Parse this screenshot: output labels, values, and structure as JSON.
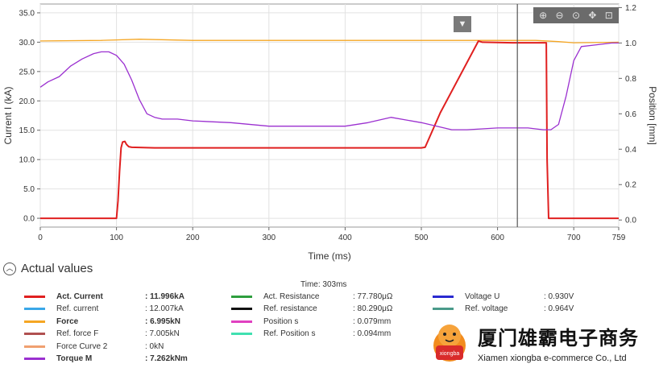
{
  "chart_data": {
    "type": "line",
    "xlabel": "Time (ms)",
    "ylabel_left": "Current I (kA)",
    "ylabel_right": "Position [mm]",
    "xlim": [
      0,
      759
    ],
    "ylim_left": [
      -1.5,
      36.5
    ],
    "ylim_right": [
      -0.04,
      1.22
    ],
    "x_ticks": [
      0,
      100,
      200,
      300,
      400,
      500,
      600,
      700,
      759
    ],
    "y_left_ticks": [
      "0.0",
      "5.0",
      "10.0",
      "15.0",
      "20.0",
      "25.0",
      "30.0",
      "35.0"
    ],
    "y_right_ticks": [
      "0.0",
      "0.2",
      "0.4",
      "0.6",
      "0.8",
      "1.0",
      "1.2"
    ],
    "cursor_x": 626,
    "grid": true,
    "series": [
      {
        "name": "Force",
        "axis": "left",
        "color": "#f5a623",
        "x": [
          0,
          80,
          130,
          200,
          400,
          600,
          650,
          680,
          700,
          759
        ],
        "y": [
          30.2,
          30.3,
          30.5,
          30.3,
          30.3,
          30.3,
          30.3,
          30.1,
          29.9,
          30.0
        ]
      },
      {
        "name": "Act. Current",
        "axis": "left",
        "color": "#e02020",
        "x": [
          0,
          100,
          102,
          104,
          106,
          108,
          111,
          113,
          116,
          120,
          150,
          300,
          500,
          505,
          525,
          575,
          580,
          620,
          664,
          665,
          667,
          680,
          759
        ],
        "y": [
          0,
          0,
          3,
          8,
          12,
          13,
          13.1,
          12.6,
          12.2,
          12.1,
          12.0,
          12.0,
          12.0,
          12.1,
          18,
          30.2,
          30.0,
          29.9,
          29.9,
          10,
          0,
          0,
          0
        ]
      },
      {
        "name": "Torque M",
        "axis": "right",
        "color": "#9b30d0",
        "x": [
          0,
          10,
          25,
          40,
          55,
          70,
          80,
          90,
          100,
          110,
          120,
          130,
          140,
          150,
          160,
          180,
          200,
          250,
          300,
          350,
          400,
          430,
          460,
          500,
          540,
          560,
          600,
          640,
          660,
          670,
          680,
          690,
          700,
          710,
          730,
          750,
          759
        ],
        "y": [
          0.75,
          0.78,
          0.81,
          0.87,
          0.91,
          0.94,
          0.95,
          0.95,
          0.93,
          0.88,
          0.79,
          0.68,
          0.6,
          0.58,
          0.57,
          0.57,
          0.56,
          0.55,
          0.53,
          0.53,
          0.53,
          0.55,
          0.58,
          0.55,
          0.51,
          0.51,
          0.52,
          0.52,
          0.51,
          0.51,
          0.54,
          0.7,
          0.9,
          0.98,
          0.99,
          1.0,
          1.0
        ]
      }
    ]
  },
  "section": {
    "title": "Actual values",
    "time_readout": "Time: 303ms"
  },
  "values_col1": [
    {
      "label": "Act. Current",
      "value": ": 11.996kA",
      "color": "#e02020",
      "bold": true
    },
    {
      "label": "Ref. current",
      "value": ": 12.007kA",
      "color": "#3aa7e8",
      "bold": false
    },
    {
      "label": "Force",
      "value": ": 6.995kN",
      "color": "#f5a623",
      "bold": true
    },
    {
      "label": "Ref. force F",
      "value": ": 7.005kN",
      "color": "#b05050",
      "bold": false
    },
    {
      "label": "Force Curve 2",
      "value": ": 0kN",
      "color": "#f0a070",
      "bold": false
    },
    {
      "label": "Torque M",
      "value": ": 7.262kNm",
      "color": "#9b30d0",
      "bold": true
    }
  ],
  "values_col2": [
    {
      "label": "Act. Resistance",
      "value": ": 77.780μΩ",
      "color": "#2e9e3e",
      "bold": false
    },
    {
      "label": "Ref. resistance",
      "value": ": 80.290μΩ",
      "color": "#111111",
      "bold": false
    },
    {
      "label": "Position s",
      "value": ": 0.079mm",
      "color": "#e040c0",
      "bold": false
    },
    {
      "label": "Ref. Position s",
      "value": ": 0.094mm",
      "color": "#40e0b0",
      "bold": false
    }
  ],
  "values_col3": [
    {
      "label": "Voltage U",
      "value": ": 0.930V",
      "color": "#2a2ad0",
      "bold": false
    },
    {
      "label": "Ref. voltage",
      "value": ": 0.964V",
      "color": "#4a9a8a",
      "bold": false
    }
  ],
  "toolbar": {
    "icons": [
      "zoom-in-icon",
      "zoom-out-icon",
      "zoom-reset-icon",
      "pan-icon",
      "zoom-box-icon"
    ]
  },
  "brand": {
    "cn": "厦门雄霸电子商务",
    "en": "Xiamen xiongba e-commerce Co., Ltd",
    "logo_text": "xiongba"
  }
}
